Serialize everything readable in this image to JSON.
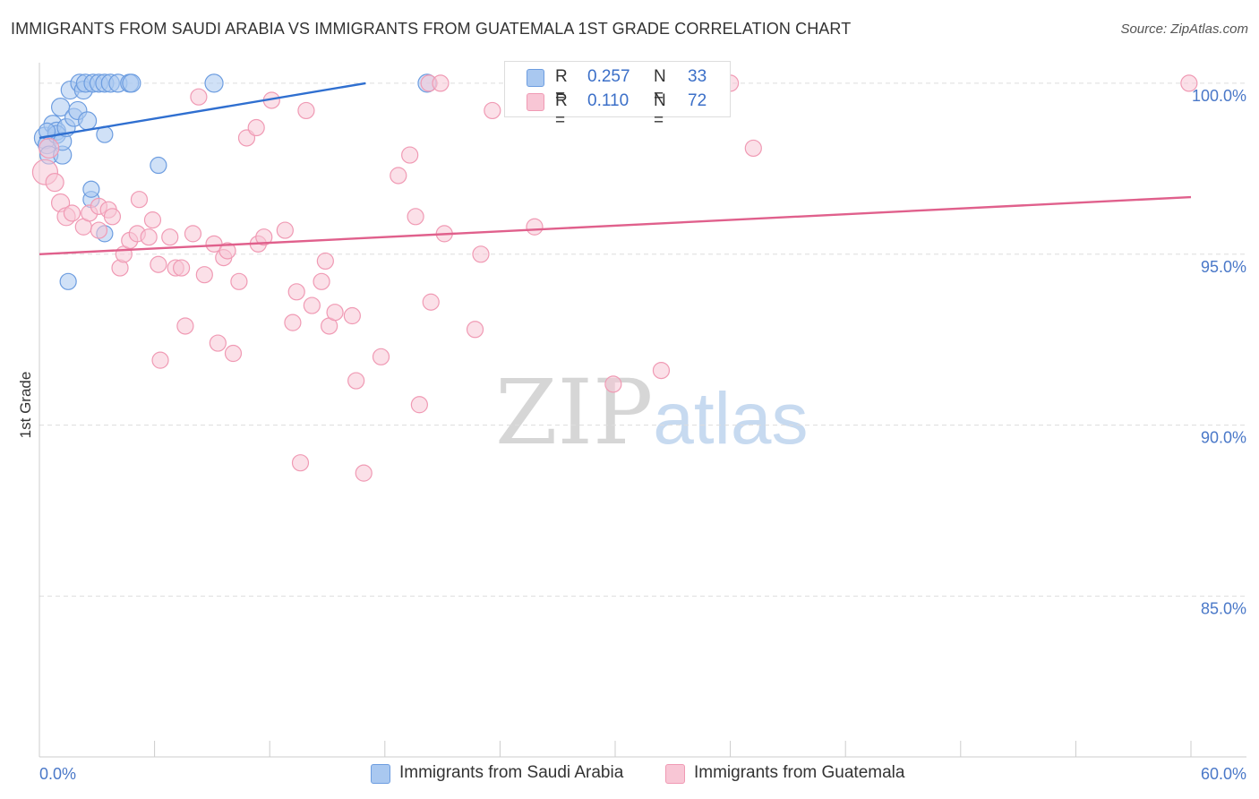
{
  "title": "IMMIGRANTS FROM SAUDI ARABIA VS IMMIGRANTS FROM GUATEMALA 1ST GRADE CORRELATION CHART",
  "source": "Source: ZipAtlas.com",
  "watermark": {
    "zip": "ZIP",
    "atlas": "atlas"
  },
  "legend_top": {
    "rows": [
      {
        "r_label": "R =",
        "r_value": "0.257",
        "n_label": "N =",
        "n_value": "33"
      },
      {
        "r_label": "R =",
        "r_value": "0.110",
        "n_label": "N =",
        "n_value": "72"
      }
    ]
  },
  "chart_data": {
    "type": "scatter",
    "title": "IMMIGRANTS FROM SAUDI ARABIA VS IMMIGRANTS FROM GUATEMALA 1ST GRADE CORRELATION CHART",
    "xlabel": "",
    "ylabel": "1st Grade",
    "xlim": [
      0,
      60
    ],
    "ylim": [
      80.3,
      100.6
    ],
    "x_tick_labels": [
      {
        "value": 0,
        "label": "0.0%"
      },
      {
        "value": 60,
        "label": "60.0%"
      }
    ],
    "x_minor_ticks": [
      0,
      6,
      12,
      18,
      24,
      30,
      36,
      42,
      48,
      54,
      60
    ],
    "y_ticks": [
      {
        "value": 100,
        "label": "100.0%"
      },
      {
        "value": 95,
        "label": "95.0%"
      },
      {
        "value": 90,
        "label": "90.0%"
      },
      {
        "value": 85,
        "label": "85.0%"
      }
    ],
    "grid": true,
    "series": [
      {
        "name": "Immigrants from Saudi Arabia",
        "color": "#6d9de0",
        "fill": "#a9c8f0",
        "R": 0.257,
        "N": 33,
        "trend": {
          "x": [
            0,
            17
          ],
          "y": [
            98.4,
            100.0
          ]
        },
        "points": [
          [
            0.3,
            98.4,
            12
          ],
          [
            0.4,
            98.2,
            10
          ],
          [
            0.5,
            97.9,
            10
          ],
          [
            0.7,
            98.8,
            10
          ],
          [
            0.9,
            98.6,
            10
          ],
          [
            0.9,
            98.5,
            10
          ],
          [
            1.1,
            99.3,
            10
          ],
          [
            1.2,
            97.9,
            10
          ],
          [
            1.2,
            98.3,
            10
          ],
          [
            1.4,
            98.7,
            10
          ],
          [
            1.6,
            99.8,
            10
          ],
          [
            1.8,
            99.0,
            10
          ],
          [
            2.0,
            99.2,
            10
          ],
          [
            2.1,
            100.0,
            10
          ],
          [
            2.3,
            99.8,
            10
          ],
          [
            2.4,
            100.0,
            10
          ],
          [
            2.5,
            98.9,
            10
          ],
          [
            2.8,
            100.0,
            10
          ],
          [
            3.1,
            100.0,
            10
          ],
          [
            3.4,
            100.0,
            10
          ],
          [
            3.7,
            100.0,
            10
          ],
          [
            4.1,
            100.0,
            10
          ],
          [
            4.7,
            100.0,
            10
          ],
          [
            4.8,
            100.0,
            10
          ],
          [
            2.7,
            96.6,
            9
          ],
          [
            2.7,
            96.9,
            9
          ],
          [
            3.4,
            98.5,
            9
          ],
          [
            3.4,
            95.6,
            9
          ],
          [
            1.5,
            94.2,
            9
          ],
          [
            6.2,
            97.6,
            9
          ],
          [
            9.1,
            100.0,
            10
          ],
          [
            20.2,
            100.0,
            10
          ],
          [
            0.4,
            98.6,
            9
          ]
        ]
      },
      {
        "name": "Immigrants from Guatemala",
        "color": "#f09ab4",
        "fill": "#f8c6d5",
        "R": 0.11,
        "N": 72,
        "trend": {
          "x": [
            0,
            60
          ],
          "y": [
            95.0,
            96.67
          ]
        },
        "points": [
          [
            0.3,
            97.4,
            14
          ],
          [
            0.5,
            98.1,
            11
          ],
          [
            0.8,
            97.1,
            10
          ],
          [
            1.1,
            96.5,
            10
          ],
          [
            1.4,
            96.1,
            10
          ],
          [
            1.7,
            96.2,
            9
          ],
          [
            2.3,
            95.8,
            9
          ],
          [
            2.6,
            96.2,
            9
          ],
          [
            3.1,
            96.4,
            9
          ],
          [
            3.1,
            95.7,
            9
          ],
          [
            3.6,
            96.3,
            9
          ],
          [
            3.8,
            96.1,
            9
          ],
          [
            4.2,
            94.6,
            9
          ],
          [
            4.4,
            95.0,
            9
          ],
          [
            4.7,
            95.4,
            9
          ],
          [
            5.1,
            95.6,
            9
          ],
          [
            5.2,
            96.6,
            9
          ],
          [
            5.7,
            95.5,
            9
          ],
          [
            5.9,
            96.0,
            9
          ],
          [
            6.2,
            94.7,
            9
          ],
          [
            6.3,
            91.9,
            9
          ],
          [
            6.8,
            95.5,
            9
          ],
          [
            7.1,
            94.6,
            9
          ],
          [
            7.4,
            94.6,
            9
          ],
          [
            7.6,
            92.9,
            9
          ],
          [
            8.0,
            95.6,
            9
          ],
          [
            8.3,
            99.6,
            9
          ],
          [
            8.6,
            94.4,
            9
          ],
          [
            9.1,
            95.3,
            9
          ],
          [
            9.3,
            92.4,
            9
          ],
          [
            9.6,
            94.9,
            9
          ],
          [
            9.8,
            95.1,
            9
          ],
          [
            10.1,
            92.1,
            9
          ],
          [
            10.4,
            94.2,
            9
          ],
          [
            10.8,
            98.4,
            9
          ],
          [
            11.3,
            98.7,
            9
          ],
          [
            11.4,
            95.3,
            9
          ],
          [
            11.7,
            95.5,
            9
          ],
          [
            12.1,
            99.5,
            9
          ],
          [
            12.8,
            95.7,
            9
          ],
          [
            13.2,
            93.0,
            9
          ],
          [
            13.4,
            93.9,
            9
          ],
          [
            13.6,
            88.9,
            9
          ],
          [
            13.9,
            99.2,
            9
          ],
          [
            14.2,
            93.5,
            9
          ],
          [
            14.7,
            94.2,
            9
          ],
          [
            14.9,
            94.8,
            9
          ],
          [
            15.1,
            92.9,
            9
          ],
          [
            15.4,
            93.3,
            9
          ],
          [
            16.3,
            93.2,
            9
          ],
          [
            16.5,
            91.3,
            9
          ],
          [
            16.9,
            88.6,
            9
          ],
          [
            17.8,
            92.0,
            9
          ],
          [
            18.7,
            97.3,
            9
          ],
          [
            19.3,
            97.9,
            9
          ],
          [
            19.6,
            96.1,
            9
          ],
          [
            19.8,
            90.6,
            9
          ],
          [
            20.3,
            100.0,
            9
          ],
          [
            20.9,
            100.0,
            9
          ],
          [
            20.4,
            93.6,
            9
          ],
          [
            21.1,
            95.6,
            9
          ],
          [
            22.7,
            92.8,
            9
          ],
          [
            23.0,
            95.0,
            9
          ],
          [
            23.6,
            99.2,
            9
          ],
          [
            25.8,
            95.8,
            9
          ],
          [
            29.9,
            91.2,
            9
          ],
          [
            32.4,
            91.6,
            9
          ],
          [
            33.3,
            100.0,
            9
          ],
          [
            34.1,
            100.0,
            9
          ],
          [
            36.0,
            100.0,
            9
          ],
          [
            37.2,
            98.1,
            9
          ],
          [
            59.9,
            100.0,
            9
          ]
        ]
      }
    ]
  },
  "legend_bottom": [
    {
      "label": "Immigrants from Saudi Arabia"
    },
    {
      "label": "Immigrants from Guatemala"
    }
  ]
}
